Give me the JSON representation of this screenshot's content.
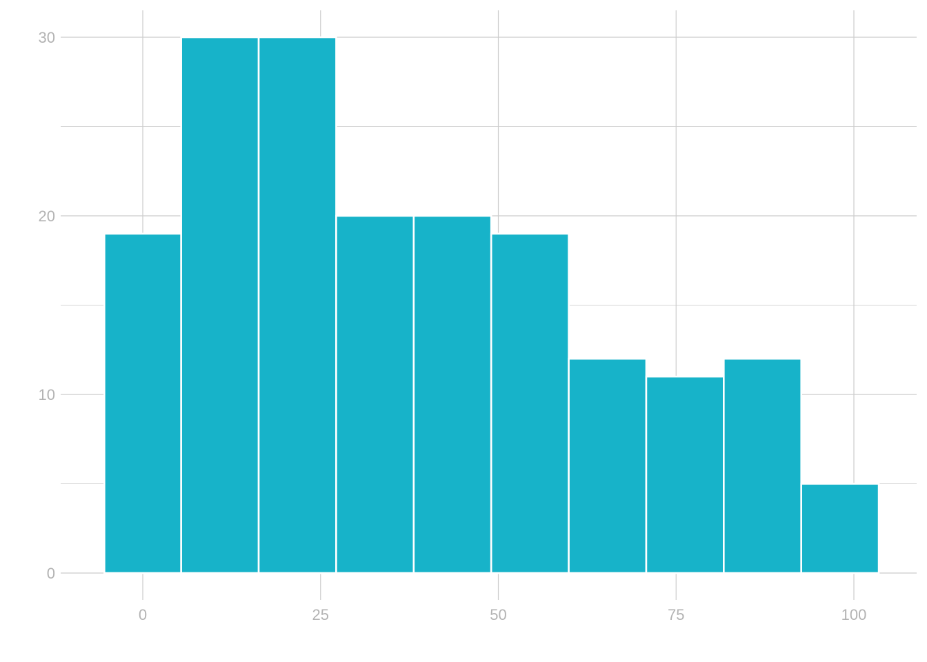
{
  "chart_data": {
    "type": "bar",
    "bins": [
      {
        "x0": -5.4,
        "x1": 5.4,
        "count": 19
      },
      {
        "x0": 5.4,
        "x1": 16.3,
        "count": 30
      },
      {
        "x0": 16.3,
        "x1": 27.2,
        "count": 30
      },
      {
        "x0": 27.2,
        "x1": 38.1,
        "count": 20
      },
      {
        "x0": 38.1,
        "x1": 49.0,
        "count": 20
      },
      {
        "x0": 49.0,
        "x1": 59.9,
        "count": 19
      },
      {
        "x0": 59.9,
        "x1": 70.8,
        "count": 12
      },
      {
        "x0": 70.8,
        "x1": 81.7,
        "count": 11
      },
      {
        "x0": 81.7,
        "x1": 92.6,
        "count": 12
      },
      {
        "x0": 92.6,
        "x1": 103.5,
        "count": 5
      }
    ],
    "xlim": [
      -11.2,
      109.4
    ],
    "ylim": [
      0,
      31.5
    ],
    "x_ticks": [
      0,
      25,
      50,
      75,
      100
    ],
    "y_ticks": [
      0,
      10,
      20,
      30
    ],
    "x_tick_labels": [
      "0",
      "25",
      "50",
      "75",
      "100"
    ],
    "y_tick_labels": [
      "0",
      "10",
      "20",
      "30"
    ],
    "y_minor_ticks": [
      5,
      15,
      25
    ],
    "grid": true,
    "title": "",
    "xlabel": "",
    "ylabel": "",
    "colors": {
      "bar": "#17b3c9",
      "bar_border": "#ffffff",
      "grid": "#cccccc",
      "tick_text": "#b3b3b3"
    }
  }
}
